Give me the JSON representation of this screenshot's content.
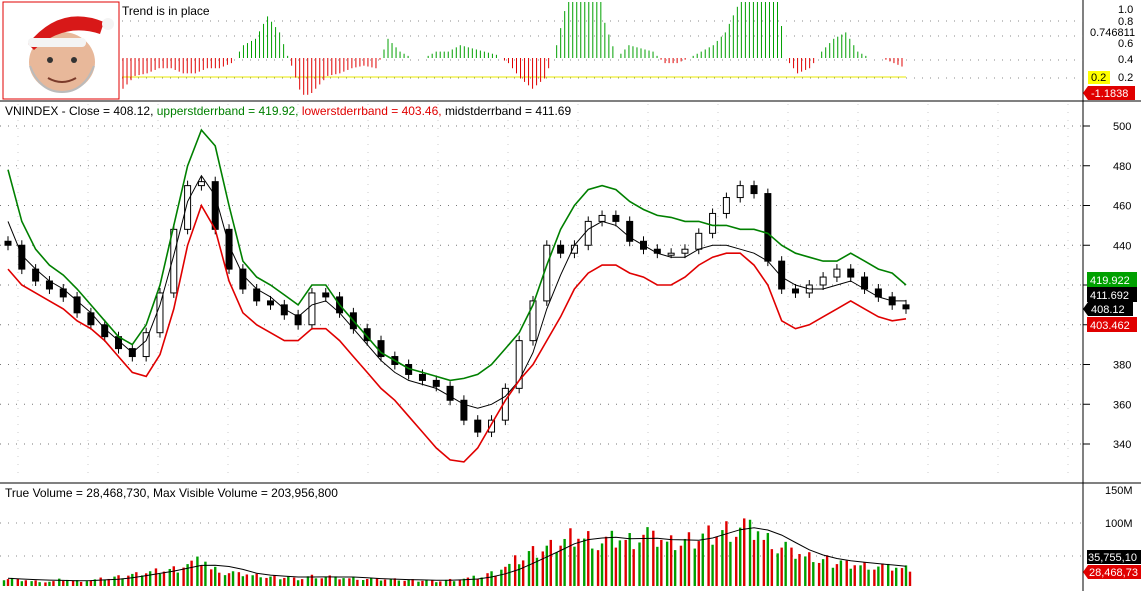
{
  "colors": {
    "upper": "#008000",
    "lower": "#e00000",
    "mid": "#000000",
    "up": "#00a000",
    "down": "#e00000",
    "trend": "#e8e800"
  },
  "panels": {
    "trend": {
      "label": "Trend is in place",
      "ticks": [
        "1.0",
        "0.8",
        "0.746811",
        "0.6",
        "0.4",
        "0.2"
      ],
      "value_badge": "0.2",
      "neg_badge": "-1.1838",
      "avatar_icon": "santa-hat-portrait-icon"
    },
    "price": {
      "legend": {
        "prefix": "VNINDEX - Close = 408.12, ",
        "upper": "upperstderrband  = 419.92, ",
        "lower": "lowerstderrband  = 403.46, ",
        "mid": "midstderrband  = 411.69"
      },
      "ticks": [
        "500",
        "480",
        "460",
        "440",
        "420",
        "400",
        "380",
        "360",
        "340"
      ],
      "badges": {
        "upper": "419.922",
        "mid": "411.692",
        "close": "408.12",
        "lower": "403.462"
      }
    },
    "volume": {
      "legend": "True Volume = 28,468,730,    Max Visible Volume = 203,956,800",
      "ticks": [
        "150M",
        "100M"
      ],
      "badges": {
        "avg": "35,755,10",
        "vol": "28,468,73"
      }
    }
  },
  "chart_data": [
    {
      "type": "line",
      "title": "VNINDEX",
      "series": [
        {
          "name": "upperstderrband",
          "values": [
            478,
            452,
            438,
            430,
            425,
            418,
            410,
            402,
            394,
            390,
            400,
            420,
            450,
            480,
            498,
            490,
            460,
            432,
            424,
            420,
            415,
            410,
            420,
            420,
            410,
            402,
            394,
            386,
            382,
            378,
            376,
            374,
            372,
            373,
            375,
            380,
            388,
            396,
            410,
            430,
            448,
            460,
            468,
            470,
            468,
            462,
            458,
            455,
            454,
            452,
            452,
            450,
            450,
            448,
            448,
            446,
            440,
            436,
            434,
            432,
            432,
            436,
            432,
            428,
            426,
            420
          ]
        },
        {
          "name": "midstderrband",
          "values": [
            452,
            435,
            428,
            422,
            418,
            412,
            406,
            398,
            392,
            386,
            392,
            410,
            435,
            462,
            475,
            465,
            440,
            425,
            418,
            414,
            408,
            404,
            410,
            412,
            406,
            398,
            390,
            382,
            376,
            372,
            370,
            368,
            364,
            360,
            358,
            360,
            364,
            372,
            386,
            408,
            425,
            440,
            448,
            452,
            450,
            444,
            440,
            436,
            434,
            434,
            438,
            440,
            440,
            438,
            436,
            432,
            424,
            420,
            418,
            418,
            420,
            422,
            418,
            414,
            412,
            412
          ]
        },
        {
          "name": "lowerstderrband",
          "values": [
            428,
            420,
            416,
            412,
            408,
            402,
            398,
            392,
            384,
            376,
            374,
            385,
            408,
            440,
            460,
            448,
            422,
            406,
            400,
            396,
            392,
            392,
            398,
            398,
            392,
            384,
            376,
            368,
            362,
            354,
            346,
            338,
            332,
            331,
            338,
            350,
            362,
            372,
            380,
            392,
            404,
            418,
            426,
            430,
            430,
            426,
            424,
            420,
            420,
            424,
            430,
            434,
            436,
            436,
            430,
            420,
            402,
            398,
            400,
            404,
            408,
            412,
            408,
            404,
            402,
            403
          ]
        },
        {
          "name": "Close",
          "values": [
            440,
            428,
            422,
            418,
            414,
            406,
            400,
            394,
            388,
            384,
            396,
            416,
            448,
            470,
            472,
            448,
            428,
            418,
            412,
            410,
            405,
            400,
            416,
            414,
            406,
            398,
            392,
            384,
            380,
            375,
            372,
            369,
            362,
            352,
            346,
            352,
            368,
            392,
            412,
            440,
            436,
            440,
            452,
            455,
            452,
            442,
            438,
            436,
            436,
            438,
            446,
            456,
            464,
            470,
            466,
            432,
            418,
            416,
            420,
            424,
            428,
            424,
            418,
            414,
            410,
            408
          ]
        }
      ],
      "ylim": [
        325,
        505
      ]
    },
    {
      "type": "bar",
      "title": "Volume",
      "series": [
        {
          "name": "True Volume",
          "values": [
            12,
            10,
            8,
            7,
            10,
            8,
            9,
            11,
            14,
            18,
            22,
            25,
            28,
            36,
            40,
            26,
            20,
            18,
            16,
            14,
            14,
            12,
            16,
            15,
            13,
            12,
            11,
            10,
            10,
            9,
            9,
            8,
            10,
            12,
            14,
            20,
            30,
            40,
            52,
            60,
            70,
            82,
            78,
            70,
            75,
            72,
            80,
            72,
            66,
            70,
            78,
            86,
            92,
            96,
            90,
            72,
            60,
            50,
            44,
            40,
            38,
            36,
            34,
            32,
            30,
            28
          ]
        }
      ],
      "ylim": [
        0,
        160
      ]
    }
  ]
}
